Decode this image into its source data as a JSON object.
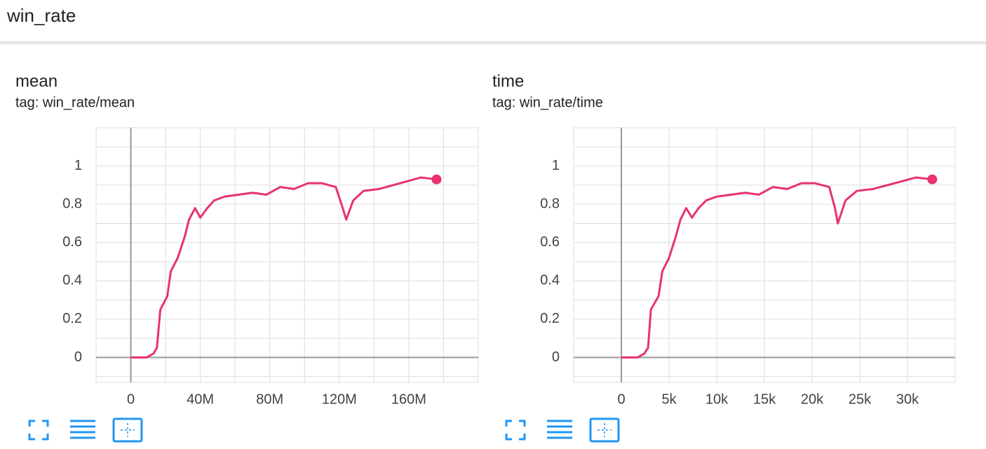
{
  "header": {
    "title": "win_rate"
  },
  "chart_data": [
    {
      "type": "line",
      "title": "mean",
      "subtitle": "tag: win_rate/mean",
      "color": "#e8336d",
      "grid": true,
      "x": [
        0,
        9000000,
        13000000,
        15000000,
        17000000,
        21000000,
        23000000,
        27000000,
        31000000,
        33500000,
        37000000,
        40000000,
        44000000,
        48000000,
        54000000,
        62000000,
        70000000,
        78000000,
        86000000,
        94000000,
        102000000,
        110000000,
        118000000,
        122000000,
        124000000,
        128000000,
        134000000,
        143000000,
        151000000,
        159000000,
        167000000,
        176000000
      ],
      "values": [
        0,
        0,
        0.02,
        0.05,
        0.25,
        0.32,
        0.45,
        0.52,
        0.63,
        0.72,
        0.78,
        0.73,
        0.78,
        0.82,
        0.84,
        0.85,
        0.86,
        0.85,
        0.89,
        0.88,
        0.91,
        0.91,
        0.89,
        0.78,
        0.72,
        0.82,
        0.87,
        0.88,
        0.9,
        0.92,
        0.94,
        0.93
      ],
      "xlim": [
        -20000000,
        200000000
      ],
      "xticks": [
        0,
        {
          "value": 40000000,
          "label": "40M"
        },
        {
          "value": 80000000,
          "label": "80M"
        },
        {
          "value": 120000000,
          "label": "120M"
        },
        {
          "value": 160000000,
          "label": "160M"
        }
      ],
      "xgrid": [
        -20000000,
        20000000,
        60000000,
        100000000,
        140000000,
        180000000
      ],
      "ylim": [
        -0.13,
        1.2
      ],
      "yticks": [
        0,
        0.2,
        0.4,
        0.6,
        0.8,
        1
      ],
      "ygrid": [
        -0.1,
        0.1,
        0.3,
        0.5,
        0.7,
        0.9,
        1.1
      ]
    },
    {
      "type": "line",
      "title": "time",
      "subtitle": "tag: win_rate/time",
      "color": "#e8336d",
      "grid": true,
      "x": [
        0,
        1700,
        2400,
        2800,
        3100,
        3900,
        4300,
        5000,
        5700,
        6200,
        6800,
        7400,
        8100,
        8900,
        10000,
        11500,
        13000,
        14400,
        15900,
        17400,
        18900,
        20300,
        21800,
        22400,
        22700,
        23500,
        24700,
        26400,
        27900,
        29400,
        30900,
        32600
      ],
      "values": [
        0,
        0,
        0.02,
        0.05,
        0.25,
        0.32,
        0.45,
        0.52,
        0.63,
        0.72,
        0.78,
        0.73,
        0.78,
        0.82,
        0.84,
        0.85,
        0.86,
        0.85,
        0.89,
        0.88,
        0.91,
        0.91,
        0.89,
        0.78,
        0.7,
        0.82,
        0.87,
        0.88,
        0.9,
        0.92,
        0.94,
        0.93
      ],
      "xlim": [
        -5000,
        35000
      ],
      "xticks": [
        0,
        {
          "value": 5000,
          "label": "5k"
        },
        {
          "value": 10000,
          "label": "10k"
        },
        {
          "value": 15000,
          "label": "15k"
        },
        {
          "value": 20000,
          "label": "20k"
        },
        {
          "value": 25000,
          "label": "25k"
        },
        {
          "value": 30000,
          "label": "30k"
        }
      ],
      "xgrid": [
        -5000
      ],
      "ylim": [
        -0.13,
        1.2
      ],
      "yticks": [
        0,
        0.2,
        0.4,
        0.6,
        0.8,
        1
      ],
      "ygrid": [
        -0.1,
        0.1,
        0.3,
        0.5,
        0.7,
        0.9,
        1.1
      ]
    }
  ]
}
